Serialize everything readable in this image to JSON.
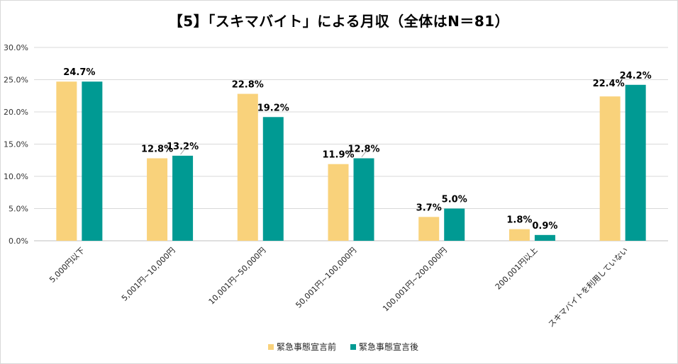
{
  "chart_data": {
    "type": "bar",
    "title": "【5】「スキマバイト」による月収（全体はN＝81）",
    "xlabel": "",
    "ylabel": "",
    "ylim": [
      0,
      30
    ],
    "yticks": [
      "0.0%",
      "5.0%",
      "10.0%",
      "15.0%",
      "20.0%",
      "25.0%",
      "30.0%"
    ],
    "grid": true,
    "legend_position": "bottom",
    "categories": [
      "5,000円以下",
      "5,001円~10,000円",
      "10,001円~50,000円",
      "50,001円~100,000円",
      "100,001円~200,000円",
      "200,001円以上",
      "スキマバイトを利用していない"
    ],
    "series": [
      {
        "name": "緊急事態宣言前",
        "color": "#f9d27b",
        "values": [
          24.7,
          12.8,
          22.8,
          11.9,
          3.7,
          1.8,
          22.4
        ],
        "labels": [
          "",
          "12.8%",
          "22.8%",
          "11.9%",
          "3.7%",
          "1.8%",
          "22.4%"
        ]
      },
      {
        "name": "緊急事態宣言後",
        "color": "#009a93",
        "values": [
          24.7,
          13.2,
          19.2,
          12.8,
          5.0,
          0.9,
          24.2
        ],
        "labels": [
          "24.7%",
          "13.2%",
          "19.2%",
          "12.8%",
          "5.0%",
          "0.9%",
          "24.2%"
        ]
      }
    ]
  }
}
